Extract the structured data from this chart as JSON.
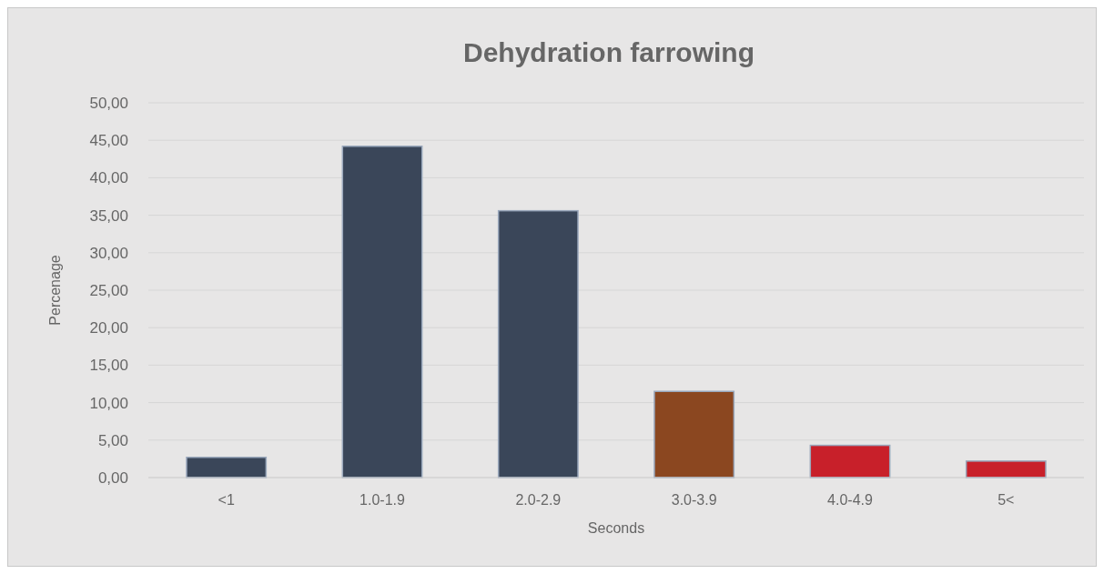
{
  "chart_data": {
    "type": "bar",
    "title": "Dehydration farrowing",
    "xlabel": "Seconds",
    "ylabel": "Percenage",
    "categories": [
      "<1",
      "1.0-1.9",
      "2.0-2.9",
      "3.0-3.9",
      "4.0-4.9",
      "5<"
    ],
    "values": [
      2.7,
      44.2,
      35.6,
      11.5,
      4.3,
      2.2
    ],
    "colors": [
      "#3a4659",
      "#3a4659",
      "#3a4659",
      "#8b4720",
      "#c8202a",
      "#c8202a"
    ],
    "ylim": [
      0,
      50
    ],
    "yticks": [
      {
        "value": 0,
        "label": "0,00"
      },
      {
        "value": 5,
        "label": "5,00"
      },
      {
        "value": 10,
        "label": "10,00"
      },
      {
        "value": 15,
        "label": "15,00"
      },
      {
        "value": 20,
        "label": "20,00"
      },
      {
        "value": 25,
        "label": "25,00"
      },
      {
        "value": 30,
        "label": "30,00"
      },
      {
        "value": 35,
        "label": "35,00"
      },
      {
        "value": 40,
        "label": "40,00"
      },
      {
        "value": 45,
        "label": "45,00"
      },
      {
        "value": 50,
        "label": "50,00"
      }
    ],
    "grid": "y"
  }
}
